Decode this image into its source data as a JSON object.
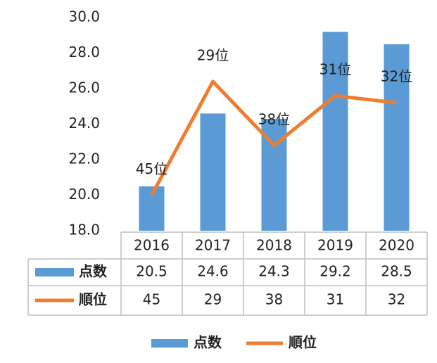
{
  "chart_data": {
    "type": "bar",
    "categories": [
      "2016",
      "2017",
      "2018",
      "2019",
      "2020"
    ],
    "series": [
      {
        "name": "点数",
        "color": "#5b9bd5",
        "values": [
          20.5,
          24.6,
          24.3,
          29.2,
          28.5
        ]
      },
      {
        "name": "順位",
        "color": "#ed7d31",
        "type": "line",
        "axis": "y2",
        "values": [
          45,
          29,
          38,
          31,
          32
        ],
        "value_labels": [
          "45位",
          "29位",
          "38位",
          "31位",
          "32位"
        ]
      }
    ],
    "ylim": [
      18,
      30
    ],
    "yticks": [
      {
        "value": 18,
        "label": "18.0"
      },
      {
        "value": 20,
        "label": "20.0"
      },
      {
        "value": 22,
        "label": "22.0"
      },
      {
        "value": 24,
        "label": "24.0"
      },
      {
        "value": 26,
        "label": "26.0"
      },
      {
        "value": 28,
        "label": "28.0"
      },
      {
        "value": 30,
        "label": "30.0"
      }
    ],
    "y2lim": [
      50,
      20
    ],
    "legend": "bottom"
  }
}
